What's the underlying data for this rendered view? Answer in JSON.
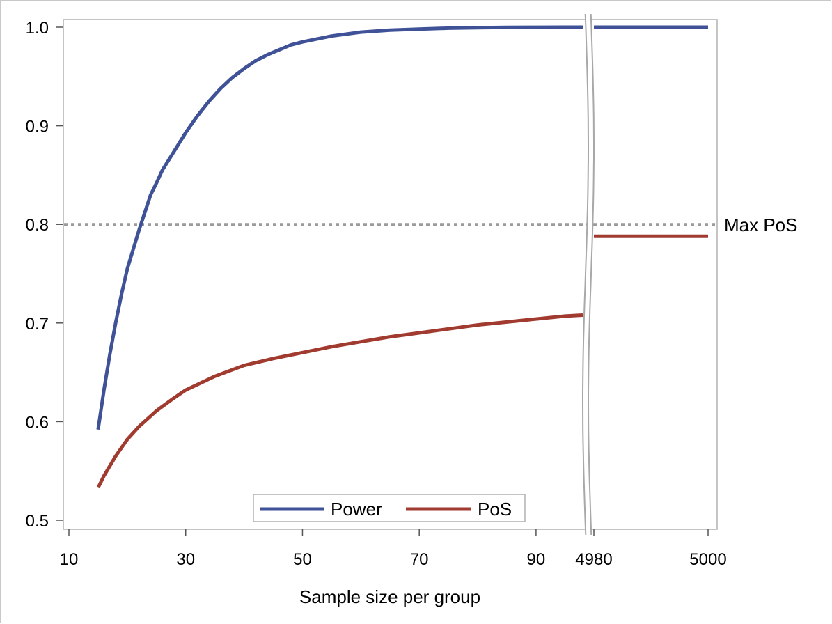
{
  "chart_data": {
    "type": "line",
    "xlabel": "Sample size per group",
    "ylabel": "",
    "title": "",
    "xlim_left": [
      10,
      98
    ],
    "xlim_right": [
      4980,
      5000
    ],
    "ylim": [
      0.5,
      1.0
    ],
    "xticks_left": [
      10,
      30,
      50,
      70,
      90
    ],
    "xticks_right": [
      4980,
      5000
    ],
    "xtick_labels_left": [
      "10",
      "30",
      "50",
      "70",
      "90"
    ],
    "xtick_labels_right": [
      "4980",
      "5000"
    ],
    "yticks": [
      0.5,
      0.6,
      0.7,
      0.8,
      0.9,
      1.0
    ],
    "ytick_labels": [
      "0.5",
      "0.6",
      "0.7",
      "0.8",
      "0.9",
      "1.0"
    ],
    "axis_break": "between 98 and 4980",
    "grid": false,
    "reference_line": {
      "y": 0.8,
      "label": "Max PoS",
      "style": "dotted",
      "color": "#9b9b9b"
    },
    "legend": {
      "placement": "bottom-center",
      "entries": [
        "Power",
        "PoS"
      ]
    },
    "series": [
      {
        "name": "Power",
        "color": "#3f5297",
        "left": {
          "x": [
            15,
            16,
            17,
            18,
            19,
            20,
            22,
            24,
            25,
            26,
            28,
            30,
            32,
            34,
            36,
            38,
            40,
            42,
            44,
            46,
            48,
            50,
            55,
            60,
            65,
            70,
            75,
            80,
            85,
            90,
            95,
            98
          ],
          "y": [
            0.592,
            0.632,
            0.668,
            0.7,
            0.729,
            0.755,
            0.794,
            0.83,
            0.842,
            0.855,
            0.874,
            0.893,
            0.91,
            0.925,
            0.938,
            0.949,
            0.958,
            0.966,
            0.972,
            0.977,
            0.982,
            0.985,
            0.991,
            0.995,
            0.997,
            0.998,
            0.999,
            0.9995,
            0.9998,
            0.9999,
            1.0,
            1.0
          ]
        },
        "right": {
          "x": [
            4980,
            5000
          ],
          "y": [
            1.0,
            1.0
          ]
        }
      },
      {
        "name": "PoS",
        "color": "#a13b30",
        "left": {
          "x": [
            15,
            16,
            18,
            20,
            22,
            25,
            28,
            30,
            35,
            40,
            45,
            50,
            55,
            60,
            65,
            70,
            75,
            80,
            85,
            90,
            95,
            98
          ],
          "y": [
            0.533,
            0.545,
            0.565,
            0.582,
            0.595,
            0.611,
            0.624,
            0.632,
            0.646,
            0.657,
            0.664,
            0.67,
            0.676,
            0.681,
            0.686,
            0.69,
            0.694,
            0.698,
            0.701,
            0.704,
            0.707,
            0.708
          ]
        },
        "right": {
          "x": [
            4980,
            5000
          ],
          "y": [
            0.788,
            0.788
          ]
        }
      }
    ]
  }
}
